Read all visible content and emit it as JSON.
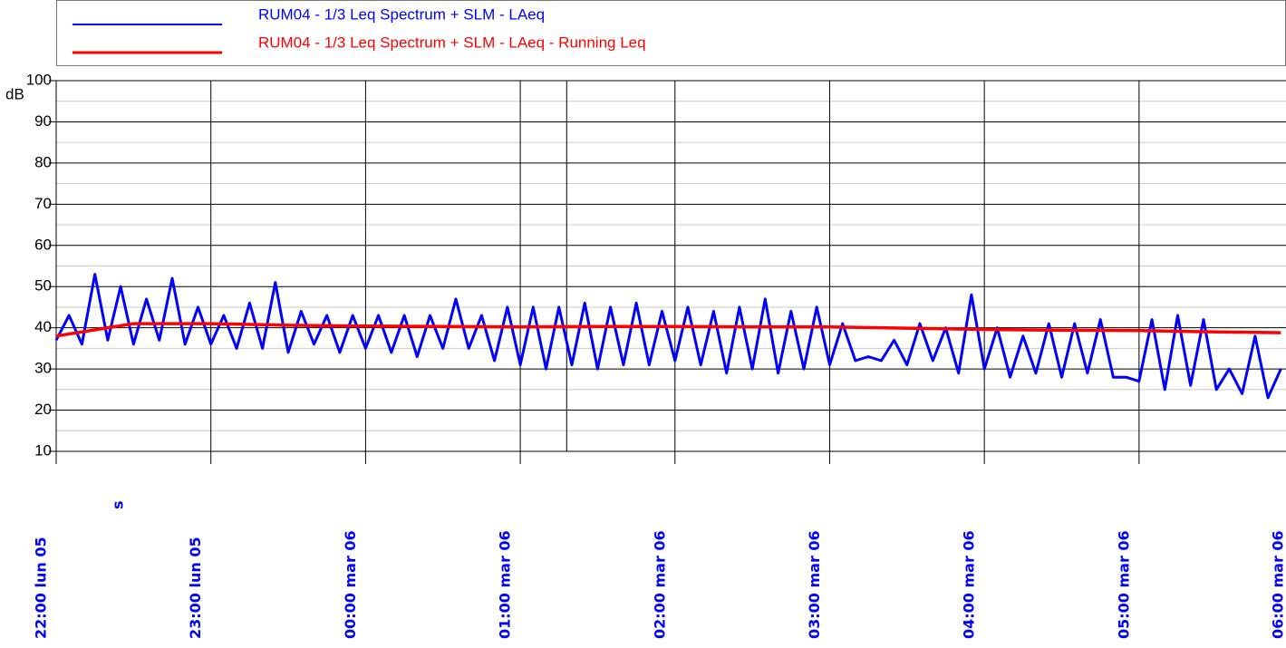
{
  "chart_data": {
    "type": "line",
    "y_label": "dB",
    "annotation": "s",
    "cursor": "01:18 mar 06",
    "xlim": [
      "22:00 lun 05",
      "05:57 mar 06"
    ],
    "xticks": [
      "22:00 lun 05",
      "23:00 lun 05",
      "00:00 mar 06",
      "01:00 mar 06",
      "02:00 mar 06",
      "03:00 mar 06",
      "04:00 mar 06",
      "05:00 mar 06",
      "06:00 mar 06"
    ],
    "ylim": [
      10,
      100
    ],
    "yticks": [
      10,
      20,
      30,
      40,
      50,
      60,
      70,
      80,
      90,
      100
    ],
    "yminor": [
      15,
      25,
      35,
      45,
      55,
      65,
      75,
      85,
      95
    ],
    "grid": true,
    "series": [
      {
        "name": "RUM04 - 1/3 Leq Spectrum + SLM - LAeq",
        "color": "#0000ff",
        "x": [
          "22:00 lun 05",
          "22:05 lun 05",
          "22:10 lun 05",
          "22:15 lun 05",
          "22:20 lun 05",
          "22:25 lun 05",
          "22:30 lun 05",
          "22:35 lun 05",
          "22:40 lun 05",
          "22:45 lun 05",
          "22:50 lun 05",
          "22:55 lun 05",
          "23:00 lun 05",
          "23:05 lun 05",
          "23:10 lun 05",
          "23:15 lun 05",
          "23:20 lun 05",
          "23:25 lun 05",
          "23:30 lun 05",
          "23:35 lun 05",
          "23:40 lun 05",
          "23:45 lun 05",
          "23:50 lun 05",
          "23:55 lun 05",
          "00:00 mar 06",
          "00:05 mar 06",
          "00:10 mar 06",
          "00:15 mar 06",
          "00:20 mar 06",
          "00:25 mar 06",
          "00:30 mar 06",
          "00:35 mar 06",
          "00:40 mar 06",
          "00:45 mar 06",
          "00:50 mar 06",
          "00:55 mar 06",
          "01:00 mar 06",
          "01:05 mar 06",
          "01:10 mar 06",
          "01:15 mar 06",
          "01:20 mar 06",
          "01:25 mar 06",
          "01:30 mar 06",
          "01:35 mar 06",
          "01:40 mar 06",
          "01:45 mar 06",
          "01:50 mar 06",
          "01:55 mar 06",
          "02:00 mar 06",
          "02:05 mar 06",
          "02:10 mar 06",
          "02:15 mar 06",
          "02:20 mar 06",
          "02:25 mar 06",
          "02:30 mar 06",
          "02:35 mar 06",
          "02:40 mar 06",
          "02:45 mar 06",
          "02:50 mar 06",
          "02:55 mar 06",
          "03:00 mar 06",
          "03:05 mar 06",
          "03:10 mar 06",
          "03:15 mar 06",
          "03:20 mar 06",
          "03:25 mar 06",
          "03:30 mar 06",
          "03:35 mar 06",
          "03:40 mar 06",
          "03:45 mar 06",
          "03:50 mar 06",
          "03:55 mar 06",
          "04:00 mar 06",
          "04:05 mar 06",
          "04:10 mar 06",
          "04:15 mar 06",
          "04:20 mar 06",
          "04:25 mar 06",
          "04:30 mar 06",
          "04:35 mar 06",
          "04:40 mar 06",
          "04:45 mar 06",
          "04:50 mar 06",
          "04:55 mar 06",
          "05:00 mar 06",
          "05:05 mar 06",
          "05:10 mar 06",
          "05:15 mar 06",
          "05:20 mar 06",
          "05:25 mar 06",
          "05:30 mar 06",
          "05:35 mar 06",
          "05:40 mar 06",
          "05:45 mar 06",
          "05:50 mar 06",
          "05:55 mar 06"
        ],
        "values": [
          37,
          43,
          36,
          53,
          37,
          50,
          36,
          47,
          37,
          52,
          36,
          45,
          36,
          43,
          35,
          46,
          35,
          51,
          34,
          44,
          36,
          43,
          34,
          43,
          35,
          43,
          34,
          43,
          33,
          43,
          35,
          47,
          35,
          43,
          32,
          45,
          31,
          45,
          30,
          45,
          31,
          46,
          30,
          45,
          31,
          46,
          31,
          44,
          32,
          45,
          31,
          44,
          29,
          45,
          30,
          47,
          29,
          44,
          30,
          45,
          31,
          41,
          32,
          33,
          32,
          37,
          31,
          41,
          32,
          40,
          29,
          48,
          30,
          40,
          28,
          38,
          29,
          41,
          28,
          41,
          29,
          42,
          28,
          28,
          27,
          42,
          25,
          43,
          26,
          42,
          25,
          30,
          24,
          38,
          23,
          30
        ]
      },
      {
        "name": "RUM04 - 1/3 Leq Spectrum + SLM - LAeq - Running Leq",
        "color": "#ff0000",
        "x": [
          "22:00 lun 05",
          "22:30 lun 05",
          "23:00 lun 05",
          "23:30 lun 05",
          "00:00 mar 06",
          "00:30 mar 06",
          "01:00 mar 06",
          "01:30 mar 06",
          "02:00 mar 06",
          "02:30 mar 06",
          "03:00 mar 06",
          "03:30 mar 06",
          "04:00 mar 06",
          "04:30 mar 06",
          "05:00 mar 06",
          "05:30 mar 06",
          "05:55 mar 06"
        ],
        "values": [
          38,
          41,
          41,
          40.6,
          40.4,
          40.3,
          40.2,
          40.3,
          40.3,
          40.2,
          40.2,
          39.9,
          39.6,
          39.4,
          39.3,
          39.0,
          38.8
        ]
      }
    ]
  }
}
